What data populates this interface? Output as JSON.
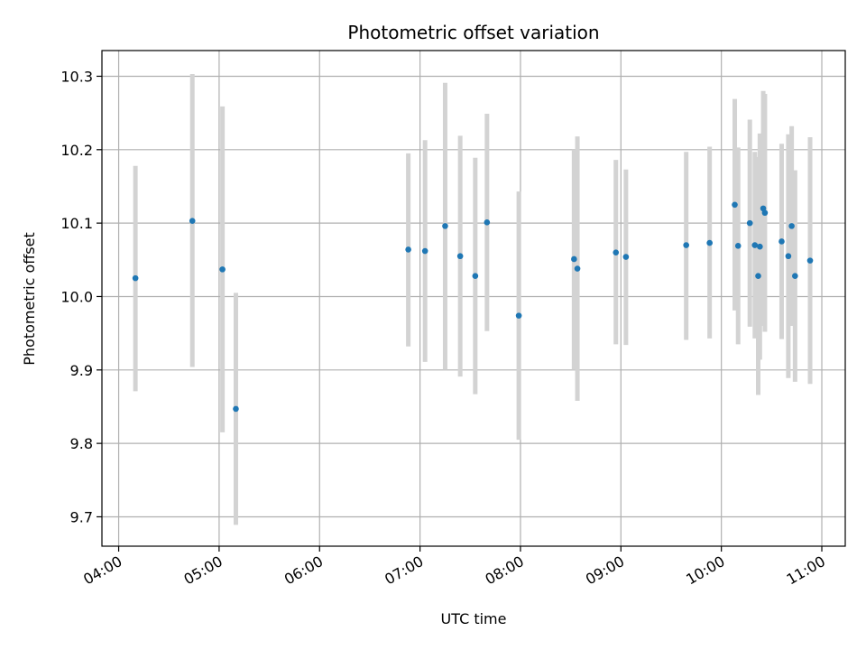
{
  "chart_data": {
    "type": "scatter",
    "title": "Photometric offset variation",
    "xlabel": "UTC time",
    "ylabel": "Photometric offset",
    "xlim": [
      "03:50",
      "11:14"
    ],
    "ylim": [
      9.66,
      10.335
    ],
    "grid": true,
    "x_ticks": [
      "04:00",
      "05:00",
      "06:00",
      "07:00",
      "08:00",
      "09:00",
      "10:00",
      "11:00"
    ],
    "y_ticks": [
      "9.7",
      "9.8",
      "9.9",
      "10.0",
      "10.1",
      "10.2",
      "10.3"
    ],
    "series": [
      {
        "style": "points with error bars",
        "marker_color": "#1f77b4",
        "errorbar_color": "#d3d3d3",
        "points": [
          {
            "x": "04:10",
            "y": 10.025,
            "lo": 9.871,
            "hi": 10.178
          },
          {
            "x": "04:44",
            "y": 10.103,
            "lo": 9.904,
            "hi": 10.303
          },
          {
            "x": "05:02",
            "y": 10.037,
            "lo": 9.815,
            "hi": 10.259
          },
          {
            "x": "05:10",
            "y": 9.847,
            "lo": 9.689,
            "hi": 10.005
          },
          {
            "x": "06:53",
            "y": 10.064,
            "lo": 9.932,
            "hi": 10.195
          },
          {
            "x": "07:03",
            "y": 10.062,
            "lo": 9.911,
            "hi": 10.213
          },
          {
            "x": "07:15",
            "y": 10.096,
            "lo": 9.9,
            "hi": 10.291
          },
          {
            "x": "07:24",
            "y": 10.055,
            "lo": 9.891,
            "hi": 10.219
          },
          {
            "x": "07:33",
            "y": 10.028,
            "lo": 9.867,
            "hi": 10.189
          },
          {
            "x": "07:40",
            "y": 10.101,
            "lo": 9.953,
            "hi": 10.249
          },
          {
            "x": "07:59",
            "y": 9.974,
            "lo": 9.805,
            "hi": 10.143
          },
          {
            "x": "08:32",
            "y": 10.051,
            "lo": 9.9,
            "hi": 10.2
          },
          {
            "x": "08:34",
            "y": 10.038,
            "lo": 9.858,
            "hi": 10.218
          },
          {
            "x": "08:57",
            "y": 10.06,
            "lo": 9.935,
            "hi": 10.186
          },
          {
            "x": "09:03",
            "y": 10.054,
            "lo": 9.934,
            "hi": 10.173
          },
          {
            "x": "09:39",
            "y": 10.07,
            "lo": 9.941,
            "hi": 10.197
          },
          {
            "x": "09:53",
            "y": 10.073,
            "lo": 9.943,
            "hi": 10.204
          },
          {
            "x": "10:08",
            "y": 10.125,
            "lo": 9.981,
            "hi": 10.269
          },
          {
            "x": "10:10",
            "y": 10.069,
            "lo": 9.935,
            "hi": 10.203
          },
          {
            "x": "10:17",
            "y": 10.1,
            "lo": 9.959,
            "hi": 10.241
          },
          {
            "x": "10:20",
            "y": 10.07,
            "lo": 9.943,
            "hi": 10.197
          },
          {
            "x": "10:22",
            "y": 10.028,
            "lo": 9.866,
            "hi": 10.19
          },
          {
            "x": "10:23",
            "y": 10.068,
            "lo": 9.914,
            "hi": 10.222
          },
          {
            "x": "10:25",
            "y": 10.12,
            "lo": 9.96,
            "hi": 10.28
          },
          {
            "x": "10:26",
            "y": 10.114,
            "lo": 9.952,
            "hi": 10.276
          },
          {
            "x": "10:36",
            "y": 10.075,
            "lo": 9.942,
            "hi": 10.208
          },
          {
            "x": "10:40",
            "y": 10.055,
            "lo": 9.889,
            "hi": 10.221
          },
          {
            "x": "10:42",
            "y": 10.096,
            "lo": 9.96,
            "hi": 10.232
          },
          {
            "x": "10:44",
            "y": 10.028,
            "lo": 9.884,
            "hi": 10.172
          },
          {
            "x": "10:53",
            "y": 10.049,
            "lo": 9.881,
            "hi": 10.217
          }
        ]
      }
    ]
  }
}
